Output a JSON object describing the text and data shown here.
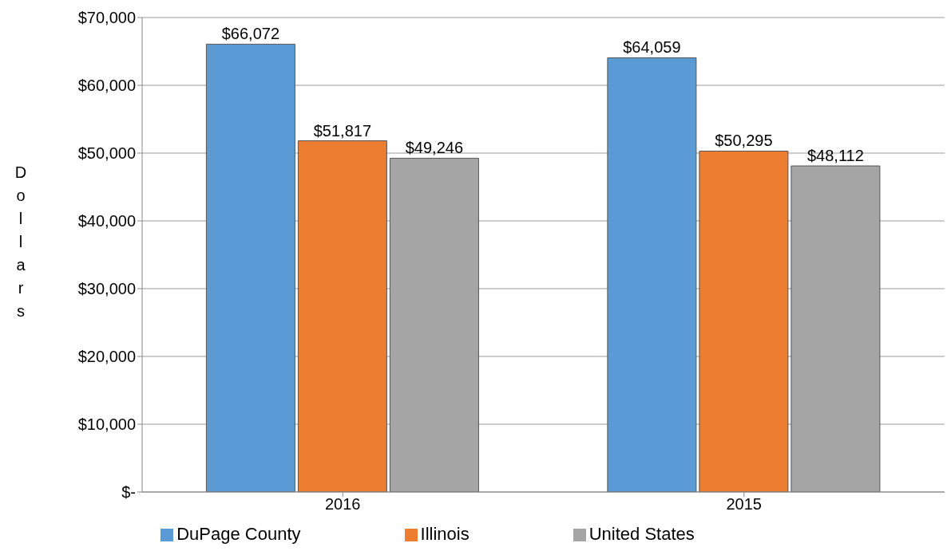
{
  "chart_data": {
    "type": "bar",
    "ylabel": "Dollars",
    "categories": [
      "2016",
      "2015"
    ],
    "series": [
      {
        "name": "DuPage County",
        "color": "#5b9bd5",
        "values": [
          66072,
          64059
        ],
        "value_labels": [
          "$66,072",
          "$64,059"
        ]
      },
      {
        "name": "Illinois",
        "color": "#ed7d31",
        "values": [
          51817,
          50295
        ],
        "value_labels": [
          "$51,817",
          "$50,295"
        ]
      },
      {
        "name": "United States",
        "color": "#a5a5a5",
        "values": [
          49246,
          48112
        ],
        "value_labels": [
          "$49,246",
          "$48,112"
        ]
      }
    ],
    "ylim": [
      0,
      70000
    ],
    "yticks": [
      {
        "value": 0,
        "label": "$-"
      },
      {
        "value": 10000,
        "label": "$10,000"
      },
      {
        "value": 20000,
        "label": "$20,000"
      },
      {
        "value": 30000,
        "label": "$30,000"
      },
      {
        "value": 40000,
        "label": "$40,000"
      },
      {
        "value": 50000,
        "label": "$50,000"
      },
      {
        "value": 60000,
        "label": "$60,000"
      },
      {
        "value": 70000,
        "label": "$70,000"
      }
    ],
    "grid": "y",
    "legend": "bottom"
  }
}
